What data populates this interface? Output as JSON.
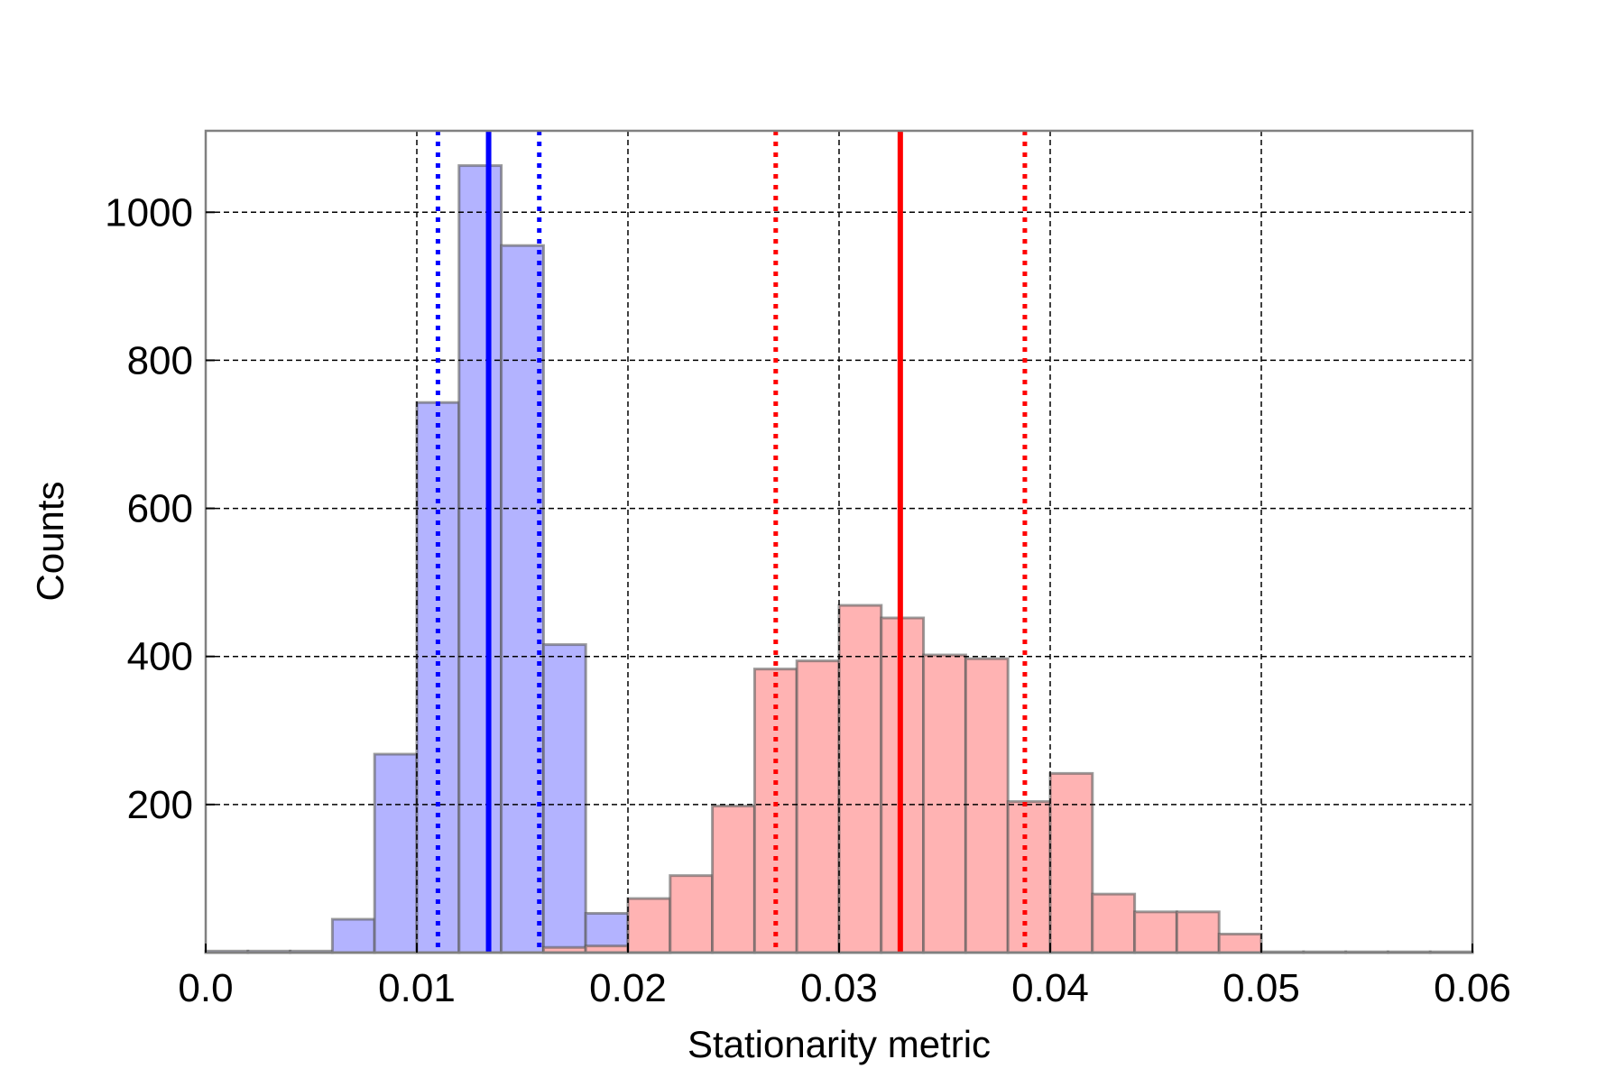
{
  "chart_data": {
    "type": "bar",
    "subtype": "overlaid-histogram",
    "title": "",
    "xlabel": "Stationarity metric",
    "ylabel": "Counts",
    "xlim": [
      0.0,
      0.06
    ],
    "ylim": [
      0,
      1110
    ],
    "x_ticks": [
      0.0,
      0.01,
      0.02,
      0.03,
      0.04,
      0.05,
      0.06
    ],
    "x_tick_labels": [
      "0.0",
      "0.01",
      "0.02",
      "0.03",
      "0.04",
      "0.05",
      "0.06"
    ],
    "y_ticks": [
      200,
      400,
      600,
      800,
      1000
    ],
    "y_tick_labels": [
      "200",
      "400",
      "600",
      "800",
      "1000"
    ],
    "grid": true,
    "grid_style": "dashed",
    "legend": "none",
    "bin_width": 0.002,
    "series": [
      {
        "color": "#b3b3ff",
        "bin_starts": [
          0.0,
          0.002,
          0.004,
          0.006,
          0.008,
          0.01,
          0.012,
          0.014,
          0.016,
          0.018,
          0.02
        ],
        "counts": [
          2,
          2,
          2,
          45,
          268,
          743,
          1063,
          955,
          416,
          53,
          2
        ],
        "median": 0.0134,
        "lower_bound": 0.011,
        "upper_bound": 0.0158,
        "line_color": "#0000ff"
      },
      {
        "color": "#ffb3b3",
        "bin_starts": [
          0.016,
          0.018,
          0.02,
          0.022,
          0.024,
          0.026,
          0.028,
          0.03,
          0.032,
          0.034,
          0.036,
          0.038,
          0.04,
          0.042,
          0.044,
          0.046,
          0.048,
          0.05,
          0.052,
          0.054,
          0.056,
          0.058
        ],
        "counts": [
          7,
          9,
          73,
          104,
          198,
          383,
          394,
          469,
          452,
          402,
          397,
          204,
          242,
          79,
          55,
          55,
          25,
          1,
          1,
          1,
          1,
          1
        ],
        "median": 0.0329,
        "lower_bound": 0.027,
        "upper_bound": 0.0388,
        "line_color": "#ff0000"
      }
    ]
  }
}
